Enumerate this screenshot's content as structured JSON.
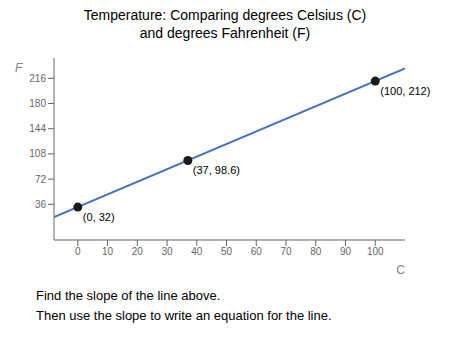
{
  "chart_data": {
    "type": "line",
    "title": "Temperature: Comparing degrees Celsius (C)\nand degrees Fahrenheit (F)",
    "x_label": "C",
    "y_label": "F",
    "annotations": [
      "Find the slope of the line above.",
      "Then use the slope to write an equation for the line."
    ],
    "series": [
      {
        "type": "line",
        "color": "#4472C4",
        "x": [
          -8,
          110
        ],
        "values": [
          17.6,
          230
        ]
      },
      {
        "type": "scatter",
        "color": "#1a1a1a",
        "marker": "circle",
        "x": [
          0,
          37,
          100
        ],
        "values": [
          32,
          98.6,
          212
        ],
        "value_labels": [
          "(0, 32)",
          "(37, 98.6)",
          "(100, 212)"
        ]
      }
    ],
    "data_labels": true,
    "xlim": [
      -8,
      110
    ],
    "xticks": [
      0,
      10,
      20,
      30,
      40,
      50,
      60,
      70,
      80,
      90,
      100
    ],
    "ylim": [
      -15,
      245
    ],
    "yticks": [
      36,
      72,
      108,
      144,
      180,
      216
    ],
    "grid": false
  }
}
